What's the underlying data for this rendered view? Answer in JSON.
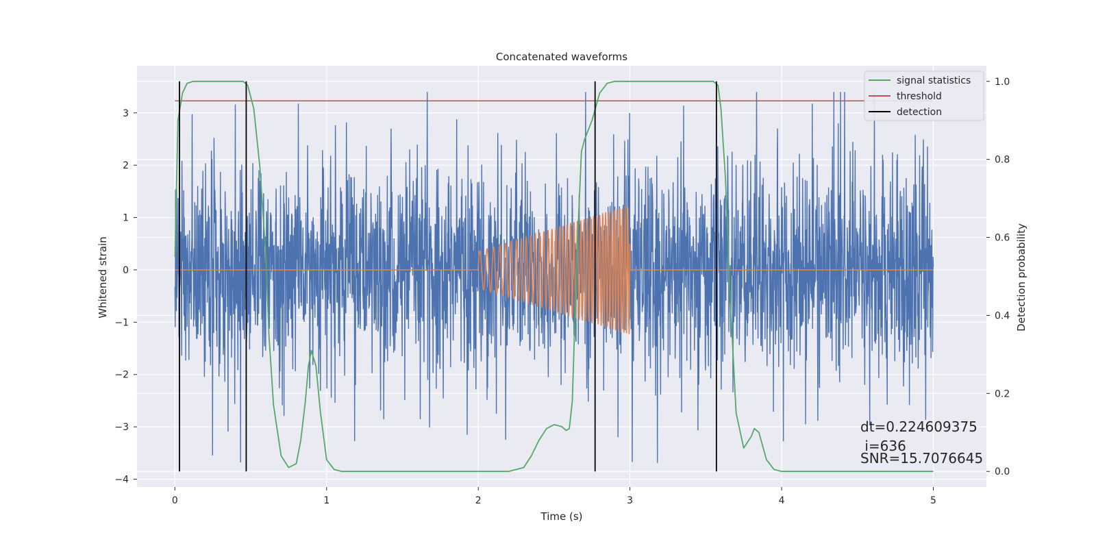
{
  "chart_data": {
    "type": "line",
    "title": "Concatenated waveforms",
    "xlabel": "Time (s)",
    "ylabel_left": "Whitened strain",
    "ylabel_right": "Detection probability",
    "xlim": [
      -0.25,
      5.35
    ],
    "ylim_left": [
      -4.15,
      3.9
    ],
    "ylim_right": [
      -0.04,
      1.04
    ],
    "x_ticks": [
      0,
      1,
      2,
      3,
      4,
      5
    ],
    "x_tick_labels": [
      "0",
      "1",
      "2",
      "3",
      "4",
      "5"
    ],
    "y_left_ticks": [
      -4,
      -3,
      -2,
      -1,
      0,
      1,
      2,
      3
    ],
    "y_left_tick_labels": [
      "−4",
      "−3",
      "−2",
      "−1",
      "0",
      "1",
      "2",
      "3"
    ],
    "y_right_ticks": [
      0.0,
      0.2,
      0.4,
      0.6,
      0.8,
      1.0
    ],
    "y_right_tick_labels": [
      "0.0",
      "0.2",
      "0.4",
      "0.6",
      "0.8",
      "1.0"
    ],
    "grid": true,
    "background": "#EAEAF2",
    "legend_position": "top-right",
    "series": [
      {
        "name": "",
        "axis": "left",
        "color": "#4C72B0",
        "description_values": "whitened strain noise, roughly within ±2.5 with spikes to about ±3.8, spanning x 0 to 5"
      },
      {
        "name": "",
        "axis": "left",
        "color": "#DD8452",
        "x_range": [
          0,
          5
        ],
        "chirp": {
          "start": 2.0,
          "end": 3.0,
          "amp_start": 0.35,
          "amp_end": 1.25,
          "freq_start": 20,
          "freq_end": 58
        }
      },
      {
        "name": "signal statistics",
        "axis": "right",
        "color": "#55A868",
        "x": [
          0.0,
          0.02,
          0.05,
          0.08,
          0.12,
          0.2,
          0.3,
          0.4,
          0.45,
          0.48,
          0.52,
          0.56,
          0.6,
          0.62,
          0.65,
          0.7,
          0.75,
          0.8,
          0.83,
          0.86,
          0.88,
          0.9,
          0.93,
          0.96,
          1.0,
          1.05,
          1.1,
          1.3,
          1.6,
          2.0,
          2.2,
          2.3,
          2.35,
          2.4,
          2.45,
          2.5,
          2.55,
          2.58,
          2.6,
          2.62,
          2.65,
          2.68,
          2.7,
          2.75,
          2.8,
          2.85,
          2.9,
          3.0,
          3.2,
          3.4,
          3.55,
          3.58,
          3.6,
          3.63,
          3.66,
          3.7,
          3.75,
          3.8,
          3.82,
          3.85,
          3.9,
          3.95,
          4.0,
          4.2,
          4.5,
          5.0
        ],
        "values": [
          0.55,
          0.9,
          0.97,
          0.995,
          1.0,
          1.0,
          1.0,
          1.0,
          1.0,
          0.99,
          0.93,
          0.78,
          0.55,
          0.35,
          0.17,
          0.04,
          0.01,
          0.02,
          0.08,
          0.18,
          0.27,
          0.31,
          0.27,
          0.15,
          0.03,
          0.005,
          0.0,
          0.0,
          0.0,
          0.0,
          0.0,
          0.01,
          0.04,
          0.08,
          0.11,
          0.12,
          0.115,
          0.105,
          0.11,
          0.18,
          0.55,
          0.82,
          0.85,
          0.9,
          0.97,
          0.995,
          1.0,
          1.0,
          1.0,
          1.0,
          1.0,
          0.99,
          0.93,
          0.75,
          0.45,
          0.15,
          0.06,
          0.09,
          0.11,
          0.1,
          0.03,
          0.005,
          0.0,
          0.0,
          0.0,
          0.0
        ]
      },
      {
        "name": "threshold",
        "axis": "right",
        "color": "#C44E52",
        "x": [
          0,
          5
        ],
        "values": [
          0.95,
          0.95
        ]
      },
      {
        "name": "detection",
        "axis": "right",
        "color": "#000000",
        "type": "vlines",
        "x": [
          0.03,
          0.47,
          2.77,
          3.57
        ],
        "ymin": 0.0,
        "ymax": 1.0
      }
    ],
    "annotations": [
      {
        "text": "dt=0.224609375"
      },
      {
        "text": " i=636"
      },
      {
        "text": "SNR=15.7076645"
      }
    ]
  }
}
